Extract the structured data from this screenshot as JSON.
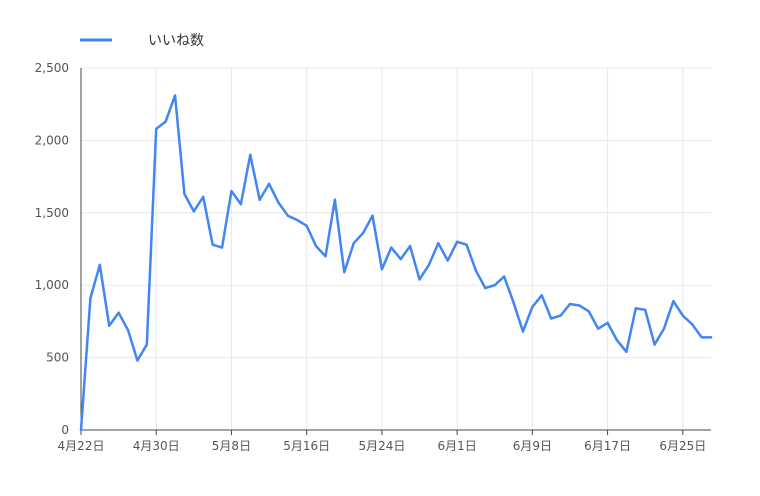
{
  "chart_data": {
    "type": "line",
    "series": [
      {
        "name": "いいね数",
        "color": "#4285f4",
        "points": [
          [
            "2021-04-22",
            0
          ],
          [
            "2021-04-23",
            910
          ],
          [
            "2021-04-24",
            1140
          ],
          [
            "2021-04-25",
            720
          ],
          [
            "2021-04-26",
            810
          ],
          [
            "2021-04-27",
            690
          ],
          [
            "2021-04-28",
            480
          ],
          [
            "2021-04-29",
            590
          ],
          [
            "2021-04-30",
            2080
          ],
          [
            "2021-05-01",
            2130
          ],
          [
            "2021-05-02",
            2310
          ],
          [
            "2021-05-03",
            1630
          ],
          [
            "2021-05-04",
            1510
          ],
          [
            "2021-05-05",
            1610
          ],
          [
            "2021-05-06",
            1280
          ],
          [
            "2021-05-07",
            1260
          ],
          [
            "2021-05-08",
            1650
          ],
          [
            "2021-05-09",
            1560
          ],
          [
            "2021-05-10",
            1900
          ],
          [
            "2021-05-11",
            1590
          ],
          [
            "2021-05-12",
            1700
          ],
          [
            "2021-05-13",
            1570
          ],
          [
            "2021-05-14",
            1480
          ],
          [
            "2021-05-15",
            1450
          ],
          [
            "2021-05-16",
            1410
          ],
          [
            "2021-05-17",
            1270
          ],
          [
            "2021-05-18",
            1200
          ],
          [
            "2021-05-19",
            1590
          ],
          [
            "2021-05-20",
            1090
          ],
          [
            "2021-05-21",
            1290
          ],
          [
            "2021-05-22",
            1360
          ],
          [
            "2021-05-23",
            1480
          ],
          [
            "2021-05-24",
            1110
          ],
          [
            "2021-05-25",
            1260
          ],
          [
            "2021-05-26",
            1180
          ],
          [
            "2021-05-27",
            1270
          ],
          [
            "2021-05-28",
            1040
          ],
          [
            "2021-05-29",
            1140
          ],
          [
            "2021-05-30",
            1290
          ],
          [
            "2021-05-31",
            1170
          ],
          [
            "2021-06-01",
            1300
          ],
          [
            "2021-06-02",
            1280
          ],
          [
            "2021-06-03",
            1100
          ],
          [
            "2021-06-04",
            980
          ],
          [
            "2021-06-05",
            1000
          ],
          [
            "2021-06-06",
            1060
          ],
          [
            "2021-06-07",
            880
          ],
          [
            "2021-06-08",
            680
          ],
          [
            "2021-06-09",
            850
          ],
          [
            "2021-06-10",
            930
          ],
          [
            "2021-06-11",
            770
          ],
          [
            "2021-06-12",
            790
          ],
          [
            "2021-06-13",
            870
          ],
          [
            "2021-06-14",
            860
          ],
          [
            "2021-06-15",
            820
          ],
          [
            "2021-06-16",
            700
          ],
          [
            "2021-06-17",
            740
          ],
          [
            "2021-06-18",
            620
          ],
          [
            "2021-06-19",
            540
          ],
          [
            "2021-06-20",
            840
          ],
          [
            "2021-06-21",
            830
          ],
          [
            "2021-06-22",
            590
          ],
          [
            "2021-06-23",
            700
          ],
          [
            "2021-06-24",
            890
          ],
          [
            "2021-06-25",
            790
          ],
          [
            "2021-06-26",
            730
          ],
          [
            "2021-06-27",
            640
          ],
          [
            "2021-06-28",
            640
          ]
        ]
      }
    ],
    "xlim": [
      "2021-04-22",
      "2021-06-28"
    ],
    "ylim": [
      0,
      2500
    ],
    "yticks": [
      0,
      500,
      1000,
      1500,
      2000,
      2500
    ],
    "ytick_labels": [
      "0",
      "500",
      "1,000",
      "1,500",
      "2,000",
      "2,500"
    ],
    "xticks": [
      "2021-04-22",
      "2021-04-30",
      "2021-05-08",
      "2021-05-16",
      "2021-05-24",
      "2021-06-01",
      "2021-06-09",
      "2021-06-17",
      "2021-06-25"
    ],
    "xtick_labels": [
      "4月22日",
      "4月30日",
      "5月8日",
      "5月16日",
      "5月24日",
      "6月1日",
      "6月9日",
      "6月17日",
      "6月25日"
    ],
    "grid": true,
    "legend_position": "top-left",
    "gridline_color": "#e8e8e8"
  }
}
